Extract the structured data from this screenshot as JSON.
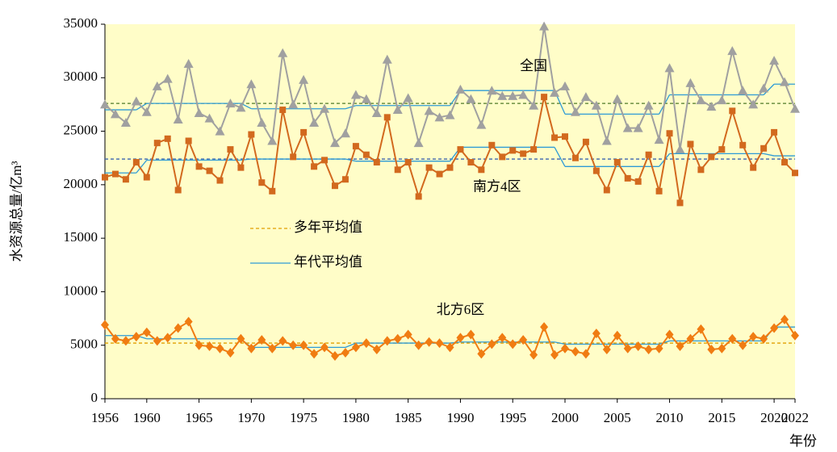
{
  "chart_data": {
    "type": "line",
    "y_label": "水资源总量/亿m³",
    "x_label": "年份",
    "x": [
      1956,
      1957,
      1958,
      1959,
      1960,
      1961,
      1962,
      1963,
      1964,
      1965,
      1966,
      1967,
      1968,
      1969,
      1970,
      1971,
      1972,
      1973,
      1974,
      1975,
      1976,
      1977,
      1978,
      1979,
      1980,
      1981,
      1982,
      1983,
      1984,
      1985,
      1986,
      1987,
      1988,
      1989,
      1990,
      1991,
      1992,
      1993,
      1994,
      1995,
      1996,
      1997,
      1998,
      1999,
      2000,
      2001,
      2002,
      2003,
      2004,
      2005,
      2006,
      2007,
      2008,
      2009,
      2010,
      2011,
      2012,
      2013,
      2014,
      2015,
      2016,
      2017,
      2018,
      2019,
      2020,
      2021,
      2022
    ],
    "decade_starts": [
      1956,
      1960,
      1970,
      1980,
      1990,
      2000,
      2010,
      2020
    ],
    "series": [
      {
        "name": "全国",
        "color": "#a0a0a0",
        "marker": "triangle",
        "mean": 27600,
        "mean_color": "#4f7a28",
        "decade_color": "#2e9bd6",
        "label_at": [
          1997,
          31000
        ],
        "decade_means": [
          27000,
          27600,
          27100,
          27400,
          28800,
          26600,
          28400,
          29400
        ],
        "values": [
          27500,
          26600,
          25800,
          27800,
          26800,
          29200,
          29900,
          26100,
          31300,
          26700,
          26200,
          25000,
          27600,
          27200,
          29400,
          25800,
          24100,
          32300,
          27500,
          29800,
          25800,
          27100,
          23900,
          24800,
          28400,
          28000,
          26700,
          31700,
          27000,
          28100,
          23900,
          26900,
          26300,
          26500,
          28900,
          28000,
          25600,
          28800,
          28300,
          28300,
          28400,
          27400,
          34800,
          28600,
          29200,
          26800,
          28200,
          27400,
          24100,
          28000,
          25300,
          25300,
          27400,
          24200,
          30900,
          23300,
          29500,
          27900,
          27300,
          27900,
          32500,
          28800,
          27500,
          29000,
          31600,
          29600,
          27100
        ]
      },
      {
        "name": "南方4区",
        "color": "#d2691e",
        "marker": "square",
        "mean": 22400,
        "mean_color": "#3a64b0",
        "decade_color": "#2e9bd6",
        "label_at": [
          1993.5,
          19700
        ],
        "decade_means": [
          21100,
          22300,
          22400,
          22200,
          23500,
          21700,
          22900,
          22700
        ],
        "values": [
          20700,
          21000,
          20500,
          22100,
          20700,
          23900,
          24300,
          19500,
          24100,
          21700,
          21300,
          20400,
          23300,
          21600,
          24700,
          20200,
          19400,
          27000,
          22600,
          24900,
          21700,
          22300,
          19900,
          20500,
          23600,
          22800,
          22100,
          26300,
          21400,
          22100,
          18900,
          21600,
          21000,
          21600,
          23300,
          22100,
          21400,
          23700,
          22600,
          23200,
          22900,
          23300,
          28200,
          24400,
          24500,
          22500,
          24000,
          21300,
          19500,
          22100,
          20600,
          20300,
          22800,
          19400,
          24800,
          18300,
          23800,
          21400,
          22600,
          23300,
          26900,
          23700,
          21600,
          23400,
          24900,
          22100,
          21100
        ]
      },
      {
        "name": "北方6区",
        "color": "#f07c12",
        "marker": "diamond",
        "mean": 5200,
        "mean_color": "#e0a000",
        "decade_color": "#2e9bd6",
        "label_at": [
          1990,
          8200
        ],
        "decade_means": [
          5900,
          5600,
          4800,
          5200,
          5300,
          5100,
          5400,
          6700
        ],
        "values": [
          6900,
          5600,
          5400,
          5800,
          6200,
          5400,
          5700,
          6600,
          7200,
          5000,
          4900,
          4700,
          4300,
          5600,
          4700,
          5500,
          4700,
          5400,
          5000,
          5000,
          4200,
          4800,
          4000,
          4300,
          4800,
          5200,
          4600,
          5400,
          5600,
          6000,
          5000,
          5300,
          5200,
          4800,
          5700,
          6000,
          4200,
          5100,
          5700,
          5100,
          5500,
          4100,
          6700,
          4100,
          4700,
          4400,
          4200,
          6100,
          4600,
          5900,
          4700,
          4900,
          4600,
          4700,
          6000,
          4900,
          5600,
          6500,
          4600,
          4700,
          5600,
          5000,
          5800,
          5600,
          6600,
          7400,
          5900
        ]
      }
    ],
    "legend": [
      {
        "label": "多年平均值",
        "color": "#e0a000",
        "dash": true
      },
      {
        "label": "年代平均值",
        "color": "#2e9bd6",
        "dash": false
      }
    ],
    "xlim": [
      1956,
      2022
    ],
    "xticks": [
      1956,
      1960,
      1965,
      1970,
      1975,
      1980,
      1985,
      1990,
      1995,
      2000,
      2005,
      2010,
      2015,
      2020,
      2022
    ],
    "ylim": [
      0,
      35000
    ],
    "yticks": [
      0,
      5000,
      10000,
      15000,
      20000,
      25000,
      30000,
      35000
    ],
    "background": "#fffdc8"
  }
}
